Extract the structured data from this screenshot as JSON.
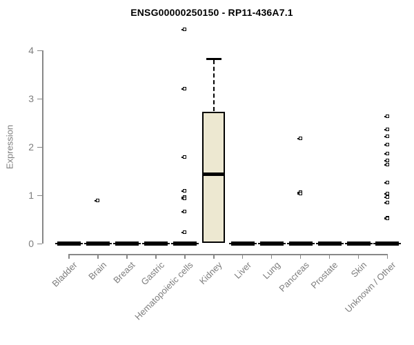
{
  "chart_data": {
    "type": "boxplot",
    "title": "ENSG00000250150 - RP11-436A7.1",
    "ylabel": "Expression",
    "xlabel": "",
    "ylim": [
      0,
      4
    ],
    "yticks": [
      0,
      1,
      2,
      3,
      4
    ],
    "grid": false,
    "legend": false,
    "categories": [
      "Bladder",
      "Brain",
      "Breast",
      "Gastric",
      "Hematopoietic cells",
      "Kidney",
      "Liver",
      "Lung",
      "Pancreas",
      "Prostate",
      "Skin",
      "Unknown / Other"
    ],
    "series": [
      {
        "category": "Bladder",
        "q1": 0,
        "median": 0,
        "q3": 0,
        "whisker_low": 0,
        "whisker_high": 0,
        "outliers": []
      },
      {
        "category": "Brain",
        "q1": 0,
        "median": 0,
        "q3": 0,
        "whisker_low": 0,
        "whisker_high": 0,
        "outliers": [
          0.9
        ]
      },
      {
        "category": "Breast",
        "q1": 0,
        "median": 0,
        "q3": 0,
        "whisker_low": 0,
        "whisker_high": 0,
        "outliers": []
      },
      {
        "category": "Gastric",
        "q1": 0,
        "median": 0,
        "q3": 0,
        "whisker_low": 0,
        "whisker_high": 0,
        "outliers": []
      },
      {
        "category": "Hematopoietic cells",
        "q1": 0,
        "median": 0,
        "q3": 0,
        "whisker_low": 0,
        "whisker_high": 0,
        "outliers": [
          4.43,
          3.21,
          1.79,
          1.1,
          0.96,
          0.93,
          0.67,
          0.24
        ]
      },
      {
        "category": "Kidney",
        "q1": 0.02,
        "median": 1.44,
        "q3": 2.73,
        "whisker_low": 0,
        "whisker_high": 3.83,
        "outliers": []
      },
      {
        "category": "Liver",
        "q1": 0,
        "median": 0,
        "q3": 0,
        "whisker_low": 0,
        "whisker_high": 0,
        "outliers": []
      },
      {
        "category": "Lung",
        "q1": 0,
        "median": 0,
        "q3": 0,
        "whisker_low": 0,
        "whisker_high": 0,
        "outliers": []
      },
      {
        "category": "Pancreas",
        "q1": 0,
        "median": 0,
        "q3": 0,
        "whisker_low": 0,
        "whisker_high": 0,
        "outliers": [
          2.18,
          1.07,
          1.04
        ]
      },
      {
        "category": "Prostate",
        "q1": 0,
        "median": 0,
        "q3": 0,
        "whisker_low": 0,
        "whisker_high": 0,
        "outliers": []
      },
      {
        "category": "Skin",
        "q1": 0,
        "median": 0,
        "q3": 0,
        "whisker_low": 0,
        "whisker_high": 0,
        "outliers": []
      },
      {
        "category": "Unknown / Other",
        "q1": 0,
        "median": 0,
        "q3": 0,
        "whisker_low": 0,
        "whisker_high": 0,
        "outliers": [
          2.64,
          2.37,
          2.22,
          2.05,
          1.86,
          1.72,
          1.64,
          1.26,
          1.04,
          0.97,
          0.85,
          0.54,
          0.52
        ]
      }
    ],
    "colors": {
      "box_fill": "#EDE8D1",
      "box_border": "#000000",
      "median": "#000000",
      "outlier_fill": "#ffffff",
      "axis": "#878787",
      "tick_text": "#7d7d7d",
      "title_text": "#000000",
      "background": "#ffffff"
    }
  }
}
